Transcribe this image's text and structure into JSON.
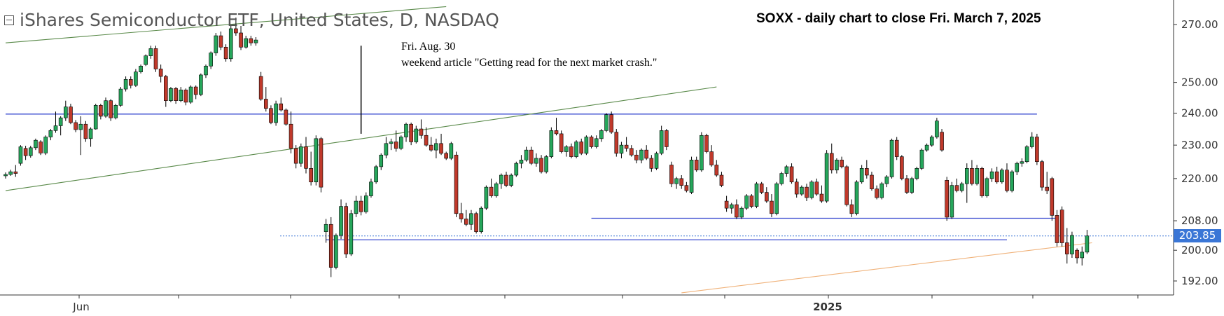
{
  "header": {
    "title": "iShares Semiconductor ETF, United States, D, NASDAQ",
    "caption": "SOXX - daily chart to close Fri. March 7, 2025",
    "annotation_line1": "Fri. Aug. 30",
    "annotation_line2": "weekend article \"Getting read for the next market crash.\""
  },
  "colors": {
    "up": "#26a65b",
    "down": "#c0392b",
    "wick": "#000000",
    "horizontal_lines": "#3a4bd0",
    "channel_lines": "#5a8a4a",
    "support_line": "#f0b27a",
    "last_price_tag": "#3a76d6",
    "axis": "#333333"
  },
  "last_price": "203.85",
  "chart_data": {
    "type": "candlestick",
    "title": "SOXX - daily chart to close Fri. March 7, 2025",
    "y_ticks": [
      "270.00",
      "250.00",
      "240.00",
      "230.00",
      "220.00",
      "208.00",
      "200.00",
      "192.00"
    ],
    "x_labels": [
      "Jun",
      "2025"
    ],
    "ylim": [
      189,
      276
    ],
    "scale": "log",
    "grid": false,
    "last_price": 203.85,
    "candles": [
      [
        220.8,
        221.8,
        220.0,
        221.2
      ],
      [
        221.2,
        222.6,
        220.8,
        222.0
      ],
      [
        222.0,
        224.0,
        220.5,
        221.5
      ],
      [
        224.5,
        230.0,
        223.8,
        229.5
      ],
      [
        229.0,
        229.8,
        225.5,
        226.8
      ],
      [
        226.8,
        229.8,
        226.2,
        229.2
      ],
      [
        229.2,
        232.0,
        228.5,
        231.5
      ],
      [
        231.0,
        231.5,
        227.0,
        227.6
      ],
      [
        227.6,
        233.0,
        227.0,
        232.5
      ],
      [
        232.5,
        235.0,
        231.5,
        234.5
      ],
      [
        234.5,
        240.5,
        233.8,
        236.0
      ],
      [
        236.0,
        239.0,
        233.0,
        238.5
      ],
      [
        238.5,
        244.0,
        237.5,
        242.0
      ],
      [
        242.0,
        243.0,
        236.5,
        237.0
      ],
      [
        237.0,
        237.8,
        234.0,
        234.8
      ],
      [
        234.8,
        239.0,
        227.0,
        236.5
      ],
      [
        236.5,
        237.5,
        231.0,
        232.0
      ],
      [
        232.0,
        235.5,
        229.5,
        235.0
      ],
      [
        235.0,
        243.0,
        234.8,
        242.5
      ],
      [
        242.5,
        243.0,
        238.0,
        239.0
      ],
      [
        239.0,
        245.0,
        238.5,
        244.0
      ],
      [
        244.0,
        244.5,
        237.5,
        238.5
      ],
      [
        238.5,
        243.0,
        238.0,
        242.5
      ],
      [
        242.5,
        248.5,
        242.0,
        247.8
      ],
      [
        247.8,
        252.0,
        247.0,
        251.0
      ],
      [
        251.0,
        252.0,
        248.0,
        249.0
      ],
      [
        249.0,
        254.5,
        248.5,
        253.5
      ],
      [
        253.5,
        256.0,
        253.0,
        255.5
      ],
      [
        256.0,
        259.5,
        255.5,
        259.0
      ],
      [
        259.0,
        262.5,
        258.0,
        261.5
      ],
      [
        261.5,
        262.5,
        253.5,
        254.5
      ],
      [
        254.5,
        256.0,
        250.0,
        252.0
      ],
      [
        252.0,
        252.5,
        242.0,
        244.0
      ],
      [
        244.0,
        248.5,
        243.5,
        248.0
      ],
      [
        248.0,
        248.5,
        243.0,
        244.0
      ],
      [
        244.0,
        248.5,
        243.5,
        247.5
      ],
      [
        247.5,
        248.0,
        242.5,
        243.5
      ],
      [
        243.5,
        249.0,
        243.0,
        248.5
      ],
      [
        248.5,
        249.0,
        244.5,
        246.0
      ],
      [
        246.0,
        253.0,
        245.5,
        252.5
      ],
      [
        252.5,
        256.0,
        251.5,
        255.5
      ],
      [
        255.5,
        260.5,
        254.5,
        260.0
      ],
      [
        260.0,
        267.0,
        259.0,
        266.0
      ],
      [
        266.0,
        267.5,
        261.0,
        262.0
      ],
      [
        262.0,
        263.0,
        257.0,
        258.0
      ],
      [
        258.0,
        269.5,
        257.0,
        268.5
      ],
      [
        268.5,
        272.5,
        266.0,
        267.0
      ],
      [
        267.0,
        269.5,
        261.0,
        262.0
      ],
      [
        262.0,
        266.0,
        261.5,
        265.0
      ],
      [
        265.0,
        266.0,
        262.5,
        263.5
      ],
      [
        263.5,
        265.5,
        262.5,
        264.5
      ],
      [
        252.0,
        253.5,
        244.0,
        244.5
      ],
      [
        244.5,
        248.5,
        240.5,
        241.5
      ],
      [
        241.5,
        242.5,
        236.5,
        237.0
      ],
      [
        237.0,
        244.0,
        236.0,
        243.0
      ],
      [
        243.0,
        245.0,
        240.5,
        241.0
      ],
      [
        241.0,
        241.5,
        236.0,
        236.5
      ],
      [
        236.5,
        240.5,
        227.5,
        229.0
      ],
      [
        229.0,
        230.0,
        223.0,
        224.5
      ],
      [
        224.5,
        230.5,
        223.5,
        229.5
      ],
      [
        229.5,
        232.5,
        221.5,
        223.0
      ],
      [
        223.0,
        228.0,
        218.0,
        219.0
      ],
      [
        219.0,
        233.0,
        218.0,
        232.0
      ],
      [
        232.0,
        232.5,
        216.0,
        217.5
      ],
      [
        205.0,
        208.5,
        202.0,
        207.0
      ],
      [
        207.0,
        209.0,
        193.0,
        195.5
      ],
      [
        195.5,
        204.5,
        195.0,
        204.0
      ],
      [
        204.0,
        214.0,
        203.0,
        212.0
      ],
      [
        212.0,
        213.0,
        198.0,
        199.0
      ],
      [
        199.0,
        211.0,
        198.5,
        210.0
      ],
      [
        210.0,
        215.0,
        209.0,
        213.5
      ],
      [
        213.5,
        215.0,
        209.5,
        210.5
      ],
      [
        210.5,
        216.0,
        210.0,
        215.0
      ],
      [
        215.0,
        220.0,
        214.5,
        219.0
      ],
      [
        219.0,
        224.0,
        218.5,
        223.5
      ],
      [
        223.5,
        227.5,
        222.5,
        227.0
      ],
      [
        227.0,
        232.5,
        226.0,
        230.5
      ],
      [
        230.5,
        232.0,
        228.5,
        231.0
      ],
      [
        231.0,
        234.5,
        228.0,
        229.0
      ],
      [
        229.0,
        233.0,
        228.5,
        232.5
      ],
      [
        232.5,
        237.0,
        231.0,
        236.5
      ],
      [
        236.5,
        237.0,
        230.0,
        231.0
      ],
      [
        231.0,
        236.0,
        230.5,
        235.0
      ],
      [
        235.0,
        238.0,
        232.0,
        233.0
      ],
      [
        233.0,
        235.5,
        229.5,
        230.0
      ],
      [
        230.0,
        232.5,
        228.0,
        228.5
      ],
      [
        228.5,
        232.0,
        226.0,
        230.5
      ],
      [
        230.5,
        233.5,
        227.0,
        227.5
      ],
      [
        227.5,
        228.0,
        225.5,
        226.0
      ],
      [
        226.0,
        231.0,
        225.5,
        230.5
      ],
      [
        227.0,
        228.0,
        209.0,
        210.0
      ],
      [
        210.0,
        213.0,
        207.5,
        208.5
      ],
      [
        208.5,
        211.0,
        206.5,
        207.0
      ],
      [
        207.0,
        211.0,
        205.5,
        210.0
      ],
      [
        210.0,
        210.5,
        204.5,
        205.0
      ],
      [
        205.0,
        212.0,
        204.5,
        211.5
      ],
      [
        211.5,
        218.0,
        211.0,
        217.5
      ],
      [
        217.5,
        220.0,
        214.5,
        215.0
      ],
      [
        215.0,
        219.0,
        214.5,
        218.5
      ],
      [
        218.5,
        221.5,
        217.0,
        221.0
      ],
      [
        221.0,
        222.0,
        217.5,
        218.0
      ],
      [
        218.0,
        221.5,
        217.5,
        221.0
      ],
      [
        221.0,
        225.0,
        220.5,
        224.5
      ],
      [
        224.5,
        227.0,
        223.0,
        225.5
      ],
      [
        225.5,
        229.5,
        225.0,
        228.5
      ],
      [
        228.5,
        229.5,
        224.0,
        224.5
      ],
      [
        224.5,
        227.5,
        223.5,
        226.0
      ],
      [
        226.0,
        227.0,
        221.5,
        222.0
      ],
      [
        222.0,
        227.0,
        221.5,
        226.5
      ],
      [
        226.5,
        235.5,
        226.0,
        234.5
      ],
      [
        234.5,
        238.5,
        233.0,
        233.5
      ],
      [
        233.5,
        234.5,
        227.5,
        228.0
      ],
      [
        228.0,
        230.0,
        226.5,
        229.5
      ],
      [
        229.5,
        230.5,
        226.0,
        226.5
      ],
      [
        226.5,
        231.5,
        226.0,
        231.0
      ],
      [
        231.0,
        232.0,
        227.0,
        227.5
      ],
      [
        227.5,
        233.0,
        227.0,
        232.5
      ],
      [
        232.5,
        233.0,
        229.0,
        229.5
      ],
      [
        229.5,
        233.0,
        229.0,
        232.0
      ],
      [
        232.0,
        235.0,
        231.0,
        234.5
      ],
      [
        234.5,
        240.0,
        234.0,
        239.5
      ],
      [
        239.5,
        240.5,
        233.5,
        234.0
      ],
      [
        234.0,
        235.0,
        226.5,
        227.5
      ],
      [
        227.5,
        231.0,
        226.0,
        230.0
      ],
      [
        230.0,
        232.5,
        228.0,
        229.0
      ],
      [
        229.0,
        230.0,
        226.5,
        227.0
      ],
      [
        227.0,
        228.5,
        224.5,
        225.5
      ],
      [
        225.5,
        229.0,
        224.5,
        228.5
      ],
      [
        228.5,
        230.0,
        225.5,
        226.0
      ],
      [
        226.0,
        227.0,
        222.0,
        223.0
      ],
      [
        223.0,
        228.0,
        222.5,
        227.5
      ],
      [
        227.5,
        236.0,
        227.0,
        234.5
      ],
      [
        234.5,
        235.0,
        228.5,
        229.5
      ],
      [
        224.0,
        225.0,
        217.5,
        218.5
      ],
      [
        218.5,
        220.5,
        217.0,
        220.0
      ],
      [
        220.0,
        221.0,
        217.0,
        218.0
      ],
      [
        218.0,
        219.0,
        216.0,
        216.5
      ],
      [
        216.0,
        226.5,
        215.5,
        225.5
      ],
      [
        225.5,
        226.5,
        222.0,
        222.5
      ],
      [
        222.5,
        234.0,
        222.0,
        233.0
      ],
      [
        233.0,
        233.5,
        227.5,
        228.0
      ],
      [
        228.0,
        230.0,
        223.5,
        224.0
      ],
      [
        224.0,
        225.5,
        220.5,
        221.0
      ],
      [
        221.0,
        222.0,
        217.5,
        218.0
      ],
      [
        213.5,
        215.0,
        210.5,
        211.5
      ],
      [
        211.5,
        213.0,
        210.0,
        212.5
      ],
      [
        212.5,
        214.0,
        208.5,
        209.0
      ],
      [
        209.0,
        212.0,
        208.5,
        211.5
      ],
      [
        211.5,
        215.5,
        211.0,
        215.0
      ],
      [
        215.0,
        215.5,
        211.5,
        212.0
      ],
      [
        212.0,
        219.0,
        211.5,
        218.5
      ],
      [
        218.5,
        219.0,
        215.5,
        216.0
      ],
      [
        216.0,
        217.5,
        213.0,
        213.5
      ],
      [
        213.5,
        215.5,
        209.0,
        210.0
      ],
      [
        210.0,
        219.0,
        209.5,
        218.5
      ],
      [
        218.5,
        222.0,
        218.0,
        221.5
      ],
      [
        221.5,
        224.0,
        220.5,
        223.5
      ],
      [
        223.5,
        224.5,
        218.5,
        219.0
      ],
      [
        219.0,
        220.0,
        214.5,
        215.5
      ],
      [
        215.5,
        218.0,
        215.0,
        217.5
      ],
      [
        217.5,
        218.5,
        213.5,
        214.5
      ],
      [
        214.5,
        219.5,
        214.0,
        219.0
      ],
      [
        219.0,
        220.0,
        215.0,
        215.5
      ],
      [
        215.5,
        218.0,
        213.0,
        213.5
      ],
      [
        213.5,
        228.5,
        213.0,
        227.5
      ],
      [
        227.5,
        230.5,
        221.5,
        222.5
      ],
      [
        222.5,
        226.0,
        221.5,
        225.5
      ],
      [
        225.5,
        226.5,
        223.0,
        223.5
      ],
      [
        223.5,
        224.0,
        212.0,
        212.5
      ],
      [
        212.5,
        214.0,
        209.0,
        210.0
      ],
      [
        210.0,
        219.5,
        209.5,
        219.0
      ],
      [
        219.0,
        224.0,
        218.5,
        223.0
      ],
      [
        223.0,
        225.5,
        220.0,
        221.0
      ],
      [
        221.0,
        222.0,
        216.5,
        217.0
      ],
      [
        217.0,
        218.0,
        214.0,
        214.5
      ],
      [
        214.5,
        219.0,
        214.0,
        218.5
      ],
      [
        218.5,
        221.0,
        217.5,
        220.5
      ],
      [
        220.5,
        232.0,
        220.0,
        231.5
      ],
      [
        231.5,
        232.5,
        225.5,
        226.5
      ],
      [
        226.5,
        227.0,
        219.5,
        220.0
      ],
      [
        220.0,
        221.0,
        215.5,
        216.0
      ],
      [
        216.0,
        220.5,
        215.5,
        220.0
      ],
      [
        220.0,
        223.5,
        219.5,
        223.0
      ],
      [
        223.0,
        229.0,
        222.5,
        228.5
      ],
      [
        228.5,
        230.5,
        228.0,
        230.0
      ],
      [
        230.0,
        233.0,
        229.5,
        232.5
      ],
      [
        232.5,
        238.5,
        232.0,
        237.5
      ],
      [
        234.0,
        235.0,
        228.0,
        228.5
      ],
      [
        219.5,
        220.5,
        208.0,
        209.0
      ],
      [
        209.0,
        219.0,
        208.5,
        218.0
      ],
      [
        218.0,
        220.0,
        216.0,
        216.5
      ],
      [
        216.5,
        219.0,
        216.0,
        218.5
      ],
      [
        218.5,
        224.5,
        213.0,
        223.0
      ],
      [
        223.0,
        225.5,
        218.0,
        218.5
      ],
      [
        218.5,
        224.0,
        218.0,
        223.0
      ],
      [
        223.0,
        223.5,
        214.5,
        215.0
      ],
      [
        215.0,
        220.5,
        214.5,
        220.0
      ],
      [
        220.0,
        223.0,
        219.0,
        222.0
      ],
      [
        222.0,
        223.5,
        218.5,
        219.0
      ],
      [
        219.0,
        223.0,
        218.5,
        222.5
      ],
      [
        222.5,
        224.5,
        216.0,
        216.5
      ],
      [
        216.5,
        222.5,
        216.0,
        222.0
      ],
      [
        222.0,
        225.0,
        221.0,
        224.5
      ],
      [
        224.5,
        226.0,
        223.5,
        225.0
      ],
      [
        225.0,
        230.0,
        224.5,
        229.5
      ],
      [
        229.5,
        234.0,
        229.0,
        232.5
      ],
      [
        232.5,
        233.5,
        224.0,
        225.0
      ],
      [
        225.0,
        225.5,
        216.5,
        217.5
      ],
      [
        217.5,
        222.0,
        215.5,
        216.5
      ],
      [
        220.0,
        220.5,
        208.0,
        209.5
      ],
      [
        209.5,
        211.0,
        201.0,
        202.0
      ],
      [
        211.0,
        212.0,
        201.0,
        202.0
      ],
      [
        202.0,
        206.0,
        196.5,
        199.0
      ],
      [
        199.0,
        205.0,
        198.0,
        204.0
      ],
      [
        200.0,
        200.5,
        196.5,
        198.0
      ],
      [
        198.0,
        201.0,
        196.0,
        199.5
      ],
      [
        199.5,
        205.5,
        199.0,
        203.85
      ]
    ],
    "horizontal_levels": [
      {
        "price": 239.7,
        "from_index": 0,
        "to_index": 206
      },
      {
        "price": 208.7,
        "from_index": 117,
        "to_index": 210
      },
      {
        "price": 202.8,
        "from_index": 64,
        "to_index": 200
      }
    ],
    "trend_lines": [
      {
        "name": "channel-upper",
        "from_index": 0,
        "from_price": 263.5,
        "to_index": 88,
        "to_price": 276.5
      },
      {
        "name": "channel-lower",
        "from_index": 0,
        "from_price": 216.5,
        "to_index": 142,
        "to_price": 248.5
      },
      {
        "name": "long-term-support",
        "from_index": 135,
        "from_price": 189.0,
        "to_index": 217,
        "to_price": 202.0
      }
    ],
    "marker": {
      "index": 71,
      "price_top": 262.5,
      "price_bottom": 233.5
    }
  }
}
